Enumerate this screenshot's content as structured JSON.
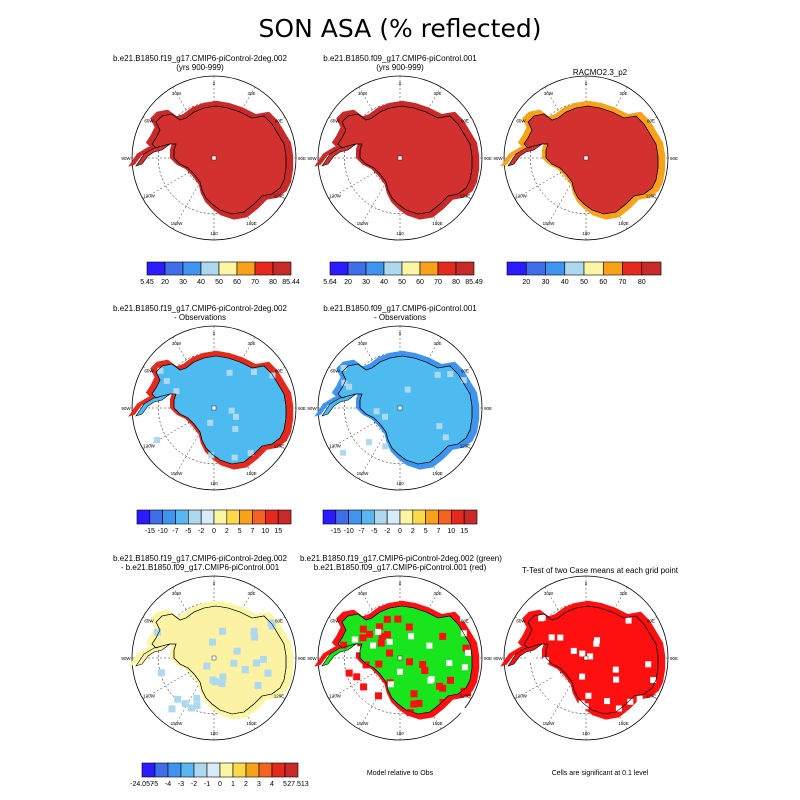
{
  "figure": {
    "title": "SON ASA (% reflected)"
  },
  "colors": {
    "scale11": [
      "#2b1bff",
      "#3f6ee8",
      "#3e94ef",
      "#5ab6f0",
      "#aed8ee",
      "#fbf6a4",
      "#fbd94a",
      "#f7a21a",
      "#f46320",
      "#e32a1d",
      "#c82a2a"
    ],
    "scale8": [
      "#2b1bff",
      "#3f6ee8",
      "#3e94ef",
      "#aed8ee",
      "#fbf6a4",
      "#f7a21a",
      "#e32a1d",
      "#c82a2a"
    ],
    "land_red": "#d33030",
    "land_blue": "#4dbaf0",
    "land_yellow": "#fcf2a4",
    "green": "#19e51c",
    "red": "#ff1010"
  },
  "panels": [
    {
      "id": "p1",
      "line1": "b.e21.B1850.f19_g17.CMIP6-piControl-2deg.002",
      "line2": "(yrs 900-999)",
      "fill": "#d33030",
      "edge": "#c82a2a",
      "pattern": "none",
      "overlay": ""
    },
    {
      "id": "p2",
      "line1": "b.e21.B1850.f09_g17.CMIP6-piControl.001",
      "line2": "(yrs 900-999)",
      "fill": "#d33030",
      "edge": "#c82a2a",
      "pattern": "none",
      "overlay": ""
    },
    {
      "id": "p3",
      "line1": "RACMO2.3_p2",
      "line2": "",
      "fill": "#d33030",
      "edge": "#f7a21a",
      "pattern": "none",
      "overlay": ""
    },
    {
      "id": "p4",
      "line1": "b.e21.B1850.f19_g17.CMIP6-piControl-2deg.002",
      "line2": "- Observations",
      "fill": "#4dbaf0",
      "edge": "#e32a1d",
      "pattern": "lightspots",
      "overlay": ""
    },
    {
      "id": "p5",
      "line1": "b.e21.B1850.f09_g17.CMIP6-piControl.001",
      "line2": "- Observations",
      "fill": "#4dbaf0",
      "edge": "#3e94ef",
      "pattern": "lightspots",
      "overlay": ""
    },
    {
      "id": "p7",
      "line1": "b.e21.B1850.f19_g17.CMIP6-piControl-2deg.002",
      "line2": "- b.e21.B1850.f09_g17.CMIP6-piControl.001",
      "fill": "#fcf2a4",
      "edge": "#fbf6a4",
      "pattern": "bluespots",
      "overlay": ""
    },
    {
      "id": "p8",
      "line1": "b.e21.B1850.f19_g17.CMIP6-piControl-2deg.002 (green)",
      "line2": "b.e21.B1850.f09_g17.CMIP6-piControl.001 (red)",
      "fill": "#19e51c",
      "edge": "#ff1010",
      "pattern": "redgreen",
      "overlay": ""
    },
    {
      "id": "p9",
      "line1": "T-Test of two Case means at each grid point",
      "line2": "",
      "fill": "#ff1010",
      "edge": "#ff1010",
      "pattern": "whitegaps",
      "overlay": ""
    }
  ],
  "map_labels": {
    "top": "0",
    "bottom": "180",
    "left": "90W",
    "right": "90E",
    "l30w": "30W",
    "l60w": "60W",
    "l120w": "120W",
    "l150w": "150W",
    "l30e": "30E",
    "l60e": "60E",
    "l120e": "120E",
    "l150e": "150E"
  },
  "colorbars": [
    {
      "id": "cb1",
      "labels": [
        "5.45",
        "20",
        "30",
        "40",
        "50",
        "60",
        "70",
        "80",
        "85.44"
      ]
    },
    {
      "id": "cb2",
      "labels": [
        "5.64",
        "20",
        "30",
        "40",
        "50",
        "60",
        "70",
        "80",
        "85.49"
      ]
    },
    {
      "id": "cb3",
      "labels": [
        "20",
        "30",
        "40",
        "50",
        "60",
        "70",
        "80"
      ]
    },
    {
      "id": "cb4",
      "labels": [
        "-15",
        "-10",
        "-7",
        "-5",
        "-2",
        "0",
        "2",
        "5",
        "7",
        "10",
        "15"
      ]
    },
    {
      "id": "cb5",
      "labels": [
        "-15",
        "-10",
        "-7",
        "-5",
        "-2",
        "0",
        "2",
        "5",
        "7",
        "10",
        "15"
      ]
    },
    {
      "id": "cb7",
      "labels": [
        "-24.057",
        "-5",
        "-4",
        "-3",
        "-2",
        "-1",
        "0",
        "1",
        "2",
        "3",
        "4",
        "5",
        "27.513"
      ]
    }
  ],
  "notes": {
    "p8": "Model relative to Obs",
    "p9": "Cells are significant at 0.1 level"
  },
  "chart_data": [
    {
      "type": "heatmap",
      "title": "b.e21.B1850.f19_g17.CMIP6-piControl-2deg.002 (yrs 900-999)",
      "projection": "south polar stereographic",
      "colorbar": {
        "min": 5.45,
        "max": 85.44,
        "levels": [
          20,
          30,
          40,
          50,
          60,
          70,
          80
        ]
      },
      "dominant_range": [
        80,
        85.44
      ]
    },
    {
      "type": "heatmap",
      "title": "b.e21.B1850.f09_g17.CMIP6-piControl.001 (yrs 900-999)",
      "projection": "south polar stereographic",
      "colorbar": {
        "min": 5.64,
        "max": 85.49,
        "levels": [
          20,
          30,
          40,
          50,
          60,
          70,
          80
        ]
      },
      "dominant_range": [
        80,
        85.49
      ]
    },
    {
      "type": "heatmap",
      "title": "RACMO2.3_p2",
      "projection": "south polar stereographic",
      "colorbar": {
        "levels": [
          20,
          30,
          40,
          50,
          60,
          70,
          80
        ]
      },
      "dominant_range": [
        80,
        90
      ]
    },
    {
      "type": "heatmap",
      "title": "b.e21.B1850.f19_g17.CMIP6-piControl-2deg.002 - Observations",
      "projection": "south polar stereographic",
      "colorbar": {
        "levels": [
          -15,
          -10,
          -7,
          -5,
          -2,
          0,
          2,
          5,
          7,
          10,
          15
        ]
      },
      "dominant_range": [
        -5,
        -2
      ]
    },
    {
      "type": "heatmap",
      "title": "b.e21.B1850.f09_g17.CMIP6-piControl.001 - Observations",
      "projection": "south polar stereographic",
      "colorbar": {
        "levels": [
          -15,
          -10,
          -7,
          -5,
          -2,
          0,
          2,
          5,
          7,
          10,
          15
        ]
      },
      "dominant_range": [
        -5,
        -2
      ]
    },
    {
      "type": "heatmap",
      "title": "b.e21.B1850.f19_g17.CMIP6-piControl-2deg.002 - b.e21.B1850.f09_g17.CMIP6-piControl.001",
      "projection": "south polar stereographic",
      "colorbar": {
        "min": -24.057,
        "max": 27.513,
        "levels": [
          -5,
          -4,
          -3,
          -2,
          -1,
          0,
          1,
          2,
          3,
          4,
          5
        ]
      },
      "dominant_range": [
        0,
        1
      ]
    },
    {
      "type": "heatmap",
      "title": "Model relative to Obs",
      "categories": [
        "b.e21.B1850.f19_g17.CMIP6-piControl-2deg.002 (green)",
        "b.e21.B1850.f09_g17.CMIP6-piControl.001 (red)"
      ]
    },
    {
      "type": "heatmap",
      "title": "T-Test of two Case means at each grid point",
      "note": "Cells are significant at 0.1 level",
      "significance_level": 0.1
    }
  ]
}
